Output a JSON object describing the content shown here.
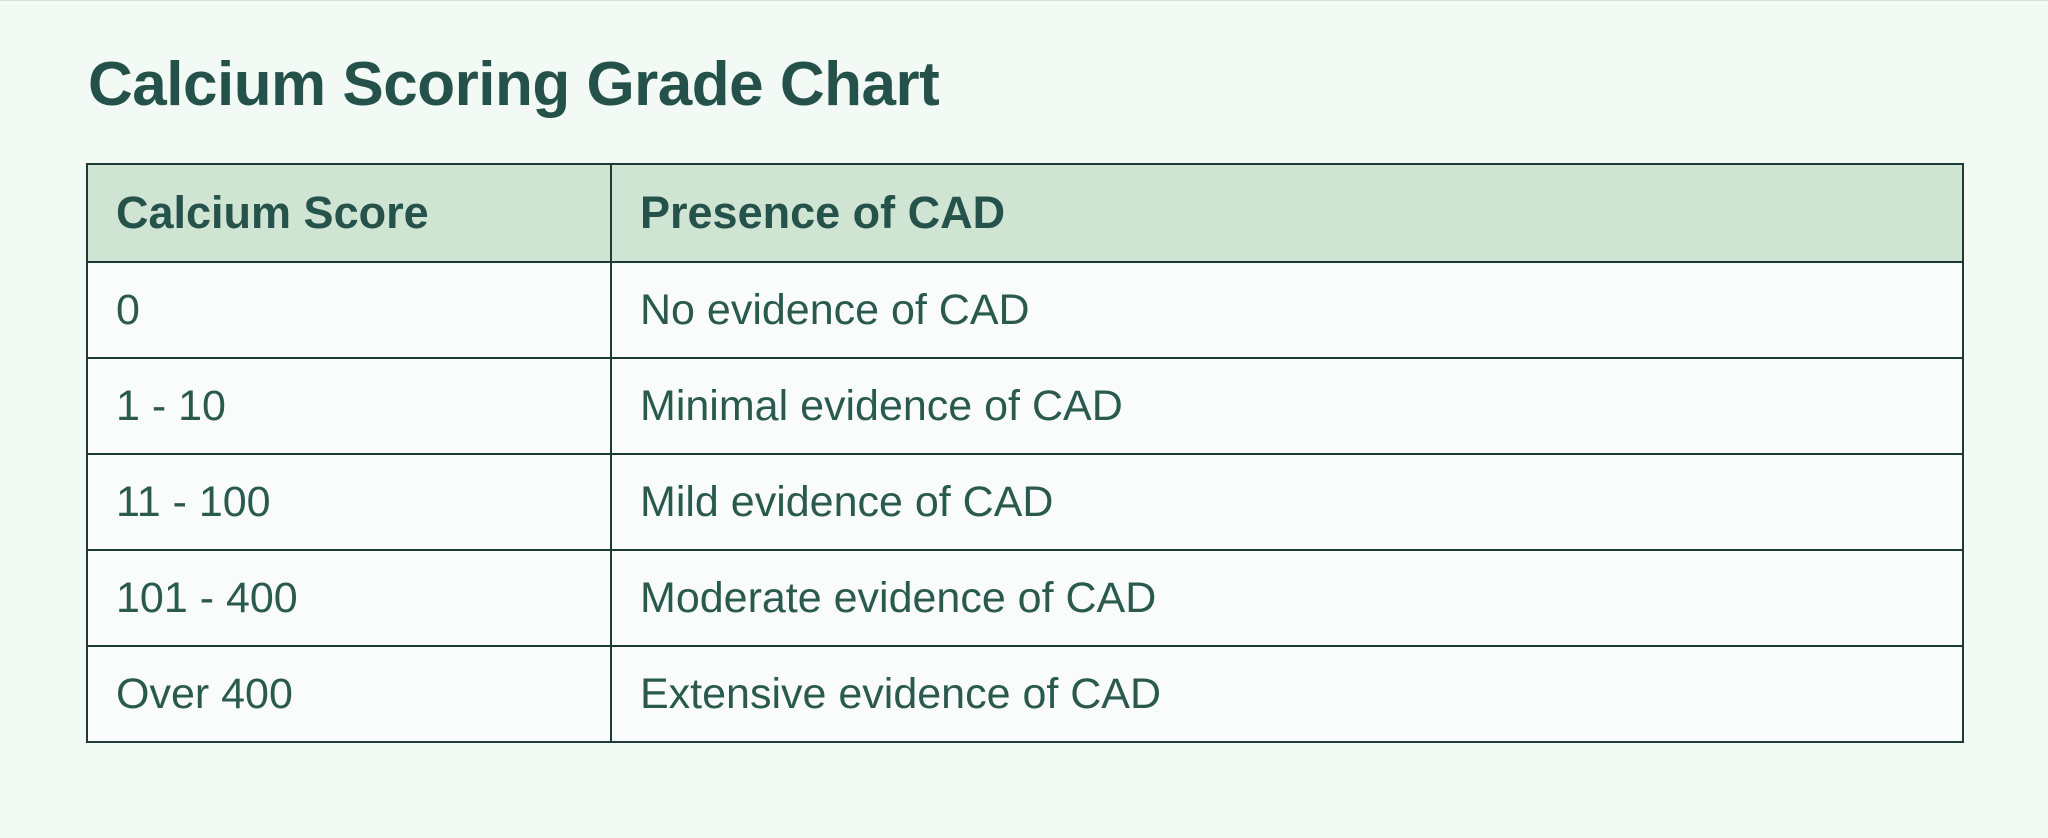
{
  "page": {
    "title": "Calcium Scoring Grade Chart",
    "background": "#f3f9f5",
    "title_color": "#24524a"
  },
  "colors": {
    "header_bg": "#cfe4d2",
    "row_bg": "#f9fcfa",
    "border": "#1e3c36",
    "body_text": "#2a5a4e"
  },
  "chart_data": {
    "type": "table",
    "title": "Calcium Scoring Grade Chart",
    "columns": [
      "Calcium Score",
      "Presence of CAD"
    ],
    "rows": [
      [
        "0",
        "No evidence of CAD"
      ],
      [
        "1 - 10",
        "Minimal evidence of CAD"
      ],
      [
        "11 - 100",
        "Mild evidence of CAD"
      ],
      [
        "101 - 400",
        "Moderate evidence of CAD"
      ],
      [
        "Over 400",
        "Extensive evidence of CAD"
      ]
    ]
  }
}
